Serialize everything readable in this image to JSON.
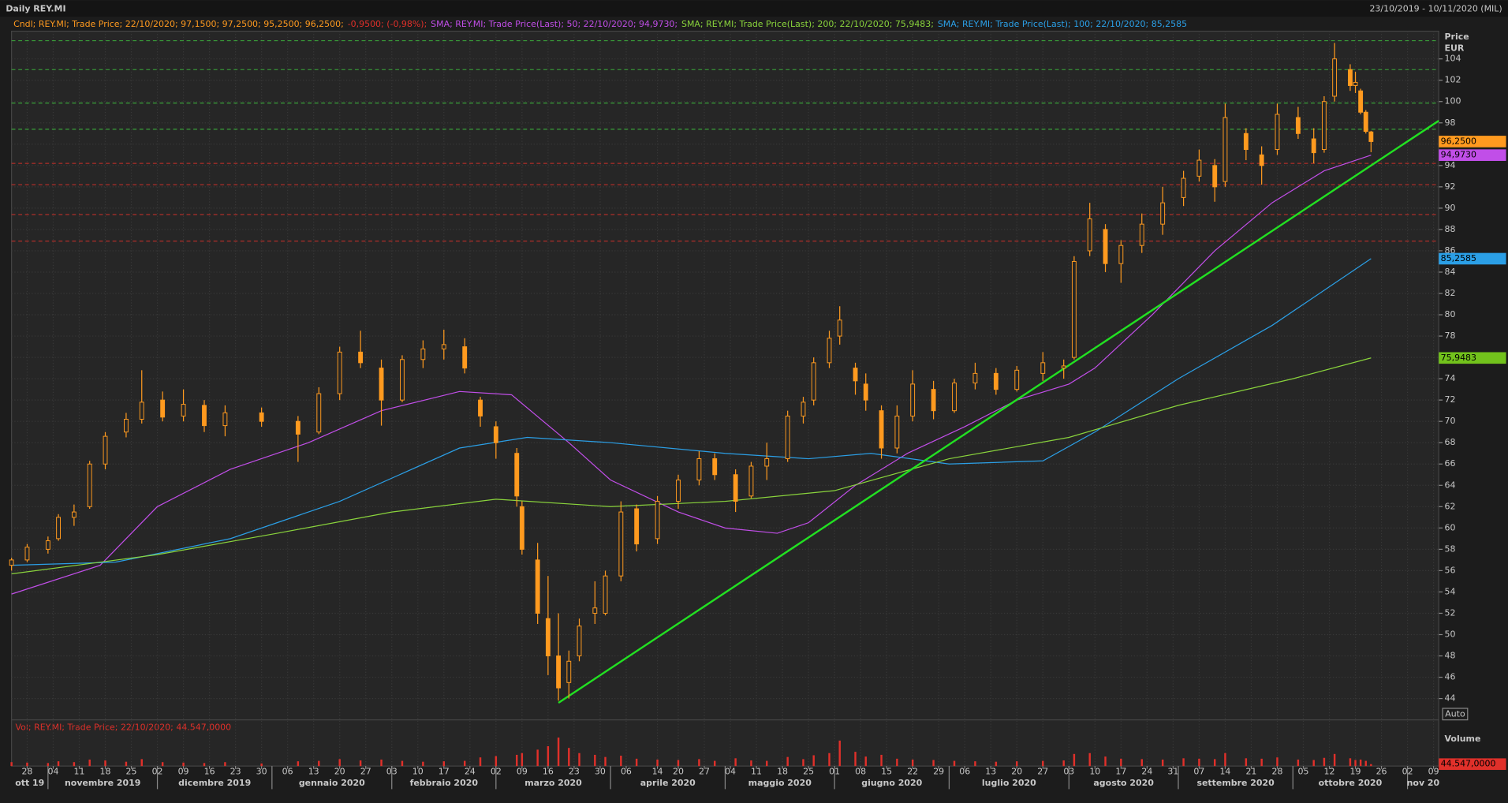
{
  "chart_data": {
    "type": "candlestick",
    "title": "Daily REY.MI",
    "date_range": "23/10/2019 - 10/11/2020 (MIL)",
    "legend": [
      {
        "text": "Cndl; REY.MI; Trade Price;  22/10/2020; 97,1500; 97,2500; 95,2500; 96,2500;",
        "color": "#ff9a1f"
      },
      {
        "text": "-0,9500; (-0,98%);",
        "color": "#e0302a"
      },
      {
        "text": "SMA; REY.MI; Trade Price(Last);  50;  22/10/2020; 94,9730;",
        "color": "#c14ee8"
      },
      {
        "text": "SMA; REY.MI; Trade Price(Last);  200;  22/10/2020; 75,9483;",
        "color": "#8ad43c"
      },
      {
        "text": "SMA; REY.MI; Trade Price(Last);  100;  22/10/2020; 85,2585",
        "color": "#2b9fe6"
      }
    ],
    "y_label": "Price",
    "y_unit": "EUR",
    "auto_label": "Auto",
    "candle_color": "#ff9a1f",
    "x": [
      "2019-10-23",
      "2019-10-28",
      "2019-11-01",
      "2019-11-05",
      "2019-11-08",
      "2019-11-13",
      "2019-11-18",
      "2019-11-22",
      "2019-11-27",
      "2019-12-03",
      "2019-12-09",
      "2019-12-13",
      "2019-12-19",
      "2019-12-30",
      "2020-01-08",
      "2020-01-14",
      "2020-01-20",
      "2020-01-24",
      "2020-01-30",
      "2020-02-05",
      "2020-02-11",
      "2020-02-17",
      "2020-02-21",
      "2020-02-26",
      "2020-03-02",
      "2020-03-06",
      "2020-03-09",
      "2020-03-12",
      "2020-03-16",
      "2020-03-18",
      "2020-03-20",
      "2020-03-24",
      "2020-03-27",
      "2020-03-31",
      "2020-04-03",
      "2020-04-08",
      "2020-04-14",
      "2020-04-20",
      "2020-04-24",
      "2020-04-29",
      "2020-05-05",
      "2020-05-08",
      "2020-05-13",
      "2020-05-19",
      "2020-05-22",
      "2020-05-26",
      "2020-05-29",
      "2020-06-02",
      "2020-06-05",
      "2020-06-09",
      "2020-06-12",
      "2020-06-17",
      "2020-06-22",
      "2020-06-26",
      "2020-07-02",
      "2020-07-08",
      "2020-07-14",
      "2020-07-20",
      "2020-07-27",
      "2020-07-31",
      "2020-08-04",
      "2020-08-07",
      "2020-08-12",
      "2020-08-17",
      "2020-08-21",
      "2020-08-27",
      "2020-09-02",
      "2020-09-07",
      "2020-09-10",
      "2020-09-14",
      "2020-09-18",
      "2020-09-23",
      "2020-09-28",
      "2020-10-02",
      "2020-10-07",
      "2020-10-09",
      "2020-10-13",
      "2020-10-16",
      "2020-10-19",
      "2020-10-20",
      "2020-10-21",
      "2020-10-22"
    ],
    "open": [
      56.5,
      57,
      58,
      59,
      61,
      62,
      66,
      69,
      70.2,
      72,
      70.5,
      71.5,
      69.6,
      70.8,
      70,
      69,
      72.6,
      76.5,
      75,
      72,
      75.8,
      76.8,
      77,
      72,
      69.5,
      67,
      62,
      57,
      51.5,
      48,
      45.5,
      48,
      52,
      52,
      55.5,
      61.8,
      59,
      62.5,
      64.5,
      66.5,
      65,
      63,
      65.8,
      66.5,
      70.5,
      72,
      75.5,
      78,
      75,
      73.5,
      71,
      67.5,
      70.5,
      73,
      71,
      73.6,
      74.5,
      73,
      74.5,
      75,
      76,
      86,
      88,
      84.8,
      86.5,
      88.5,
      91,
      93,
      94,
      92.5,
      97,
      95,
      95.5,
      98.5,
      96.5,
      95.5,
      100.5,
      103,
      101.5,
      101,
      99,
      97.15
    ],
    "high": [
      57.2,
      58.5,
      59.2,
      61.3,
      62.2,
      66.3,
      69,
      70.8,
      74.8,
      72.8,
      73,
      72,
      71.5,
      71.3,
      70.5,
      73.2,
      77,
      78.5,
      75.8,
      76.2,
      77.6,
      78.6,
      77.8,
      72.3,
      70,
      67.5,
      62.5,
      58.6,
      55.5,
      52,
      48.5,
      51.5,
      55,
      56,
      62.5,
      62.2,
      63,
      65,
      67.2,
      67,
      65.5,
      66.2,
      68,
      71,
      72.3,
      76,
      78.5,
      80.8,
      75.5,
      74.5,
      71.5,
      71.5,
      74.8,
      73.8,
      74,
      75.5,
      75,
      75.2,
      76.5,
      75.8,
      85.5,
      90.5,
      88.5,
      87,
      89.5,
      92,
      93.5,
      95.5,
      94.6,
      99.8,
      97.5,
      95.8,
      99.8,
      99.5,
      97.5,
      100.5,
      105.5,
      103.5,
      102.8,
      101.2,
      99.2,
      97.25
    ],
    "low": [
      56,
      56.8,
      57.6,
      58.8,
      60.2,
      61.8,
      65.5,
      68.5,
      69.8,
      70,
      70,
      69,
      68.6,
      69.5,
      66.2,
      68.8,
      72,
      75,
      69.6,
      71.8,
      75,
      75.8,
      74.5,
      69.5,
      66.5,
      62,
      57.5,
      51,
      46.2,
      43.8,
      44,
      47.5,
      51,
      51.8,
      55,
      57.8,
      58.5,
      61.8,
      64,
      64.5,
      61.5,
      62.8,
      64.5,
      66.2,
      69.8,
      71.5,
      75,
      77.2,
      72.5,
      71,
      66.5,
      67,
      70,
      70.2,
      70.8,
      73,
      72.5,
      72.8,
      73.8,
      74,
      75.8,
      85.5,
      84,
      83,
      85.8,
      87.5,
      90.2,
      92.5,
      90.6,
      92,
      94.5,
      92.2,
      95,
      96.5,
      94.2,
      95.2,
      100,
      101,
      100.8,
      98.8,
      97,
      95.25
    ],
    "close": [
      57,
      58.2,
      58.8,
      61,
      61.5,
      66,
      68.6,
      70.2,
      71.8,
      70.4,
      71.6,
      69.6,
      70.8,
      70,
      68.8,
      72.6,
      76.5,
      75.5,
      72,
      75.8,
      76.8,
      77.2,
      75,
      70.5,
      68,
      63,
      58,
      52,
      48,
      45,
      47.5,
      50.8,
      52.5,
      55.5,
      61.5,
      58.5,
      62.5,
      64.5,
      66.5,
      65,
      62.5,
      65.8,
      66.5,
      70.5,
      71.8,
      75.5,
      77.8,
      79.5,
      73.8,
      72,
      67.5,
      70.5,
      73.5,
      71,
      73.6,
      74.5,
      73,
      74.8,
      75.5,
      75.2,
      85,
      89,
      84.8,
      86.5,
      88.5,
      90.5,
      92.8,
      94.5,
      92,
      98.5,
      95.5,
      94,
      98.8,
      97,
      95.2,
      100,
      104,
      101.5,
      101.8,
      99,
      97.2,
      96.25
    ],
    "volume": [
      90000,
      80000,
      70000,
      110000,
      90000,
      150000,
      130000,
      100000,
      160000,
      90000,
      80000,
      70000,
      90000,
      60000,
      110000,
      120000,
      160000,
      130000,
      150000,
      120000,
      100000,
      110000,
      120000,
      200000,
      230000,
      260000,
      300000,
      380000,
      460000,
      660000,
      420000,
      300000,
      260000,
      210000,
      240000,
      170000,
      150000,
      140000,
      160000,
      120000,
      180000,
      130000,
      120000,
      210000,
      160000,
      250000,
      300000,
      590000,
      330000,
      220000,
      260000,
      170000,
      150000,
      140000,
      120000,
      110000,
      100000,
      110000,
      120000,
      130000,
      280000,
      300000,
      220000,
      170000,
      160000,
      150000,
      180000,
      170000,
      160000,
      300000,
      180000,
      170000,
      200000,
      150000,
      140000,
      190000,
      280000,
      180000,
      140000,
      150000,
      120000,
      44547
    ],
    "volume_color": "#e0302a",
    "volume_legend": "Vol; REY.MI; Trade Price;  22/10/2020; 44.547,0000",
    "volume_label": "Volume",
    "volume_last": {
      "value": 44547,
      "label": "44.547,0000"
    },
    "vlim": [
      0,
      1070000
    ],
    "series": [
      {
        "name": "SMA 50",
        "color": "#c14ee8",
        "x": [
          "2019-10-23",
          "2019-11-15",
          "2019-12-02",
          "2019-12-20",
          "2020-01-10",
          "2020-01-30",
          "2020-02-20",
          "2020-03-05",
          "2020-03-20",
          "2020-04-01",
          "2020-04-20",
          "2020-05-01",
          "2020-05-15",
          "2020-05-25",
          "2020-06-05",
          "2020-06-19",
          "2020-07-06",
          "2020-07-20",
          "2020-08-03",
          "2020-08-10",
          "2020-08-25",
          "2020-09-10",
          "2020-09-25",
          "2020-10-09",
          "2020-10-22"
        ],
        "values": [
          53.8,
          56.5,
          62,
          65.5,
          68,
          71,
          72.8,
          72.5,
          68,
          64.5,
          61.5,
          60,
          59.5,
          60.5,
          64,
          67,
          69.5,
          72,
          73.5,
          75,
          80,
          86,
          90.5,
          93.5,
          94.973
        ]
      },
      {
        "name": "SMA 100",
        "color": "#2b9fe6",
        "x": [
          "2019-10-23",
          "2019-11-20",
          "2019-12-20",
          "2020-01-20",
          "2020-02-20",
          "2020-03-10",
          "2020-04-01",
          "2020-05-01",
          "2020-05-25",
          "2020-06-10",
          "2020-07-01",
          "2020-07-27",
          "2020-08-10",
          "2020-09-01",
          "2020-09-25",
          "2020-10-22"
        ],
        "values": [
          56.5,
          56.8,
          59,
          62.5,
          67.5,
          68.5,
          68,
          67,
          66.5,
          67,
          66,
          66.3,
          69,
          74,
          79,
          85.2585
        ]
      },
      {
        "name": "SMA 200",
        "color": "#8ad43c",
        "x": [
          "2019-10-23",
          "2019-12-02",
          "2020-01-02",
          "2020-02-03",
          "2020-03-02",
          "2020-04-01",
          "2020-05-01",
          "2020-06-01",
          "2020-07-01",
          "2020-08-03",
          "2020-09-01",
          "2020-10-01",
          "2020-10-22"
        ],
        "values": [
          55.7,
          57.5,
          59.5,
          61.5,
          62.7,
          62,
          62.5,
          63.5,
          66.5,
          68.5,
          71.5,
          74,
          75.9483
        ]
      }
    ],
    "last_labels": [
      {
        "value": 96.25,
        "label": "96,2500",
        "color": "#ff9a1f"
      },
      {
        "value": 94.973,
        "label": "94,9730",
        "color": "#c14ee8"
      },
      {
        "value": 85.2585,
        "label": "85,2585",
        "color": "#2b9fe6"
      },
      {
        "value": 75.9483,
        "label": "75,9483",
        "color": "#72c21c"
      }
    ],
    "h_lines": [
      {
        "color": "#3fbf3f",
        "values": [
          105.7,
          103,
          99.85,
          97.4
        ]
      },
      {
        "color": "#d0302a",
        "values": [
          94.2,
          92.2,
          89.4,
          86.9
        ]
      }
    ],
    "trendline": {
      "color": "#22e022",
      "points": [
        [
          "2020-03-18",
          43.6
        ],
        [
          "2020-11-10",
          98.2
        ]
      ]
    },
    "xlim": [
      "2019-10-23",
      "2020-11-10"
    ],
    "ylim": [
      42,
      106.6
    ],
    "yticks": [
      44,
      46,
      48,
      50,
      52,
      54,
      56,
      58,
      60,
      62,
      64,
      66,
      68,
      70,
      72,
      74,
      76,
      78,
      80,
      82,
      84,
      86,
      88,
      90,
      92,
      94,
      96,
      98,
      100,
      102,
      104
    ],
    "xticks": [
      {
        "value": "2019-10-28",
        "label": "28"
      },
      {
        "value": "2019-11-04",
        "label": "04"
      },
      {
        "value": "2019-11-11",
        "label": "11"
      },
      {
        "value": "2019-11-18",
        "label": "18"
      },
      {
        "value": "2019-11-25",
        "label": "25"
      },
      {
        "value": "2019-12-02",
        "label": "02"
      },
      {
        "value": "2019-12-09",
        "label": "09"
      },
      {
        "value": "2019-12-16",
        "label": "16"
      },
      {
        "value": "2019-12-23",
        "label": "23"
      },
      {
        "value": "2019-12-30",
        "label": "30"
      },
      {
        "value": "2020-01-06",
        "label": "06"
      },
      {
        "value": "2020-01-13",
        "label": "13"
      },
      {
        "value": "2020-01-20",
        "label": "20"
      },
      {
        "value": "2020-01-27",
        "label": "27"
      },
      {
        "value": "2020-02-03",
        "label": "03"
      },
      {
        "value": "2020-02-10",
        "label": "10"
      },
      {
        "value": "2020-02-17",
        "label": "17"
      },
      {
        "value": "2020-02-24",
        "label": "24"
      },
      {
        "value": "2020-03-02",
        "label": "02"
      },
      {
        "value": "2020-03-09",
        "label": "09"
      },
      {
        "value": "2020-03-16",
        "label": "16"
      },
      {
        "value": "2020-03-23",
        "label": "23"
      },
      {
        "value": "2020-03-30",
        "label": "30"
      },
      {
        "value": "2020-04-06",
        "label": "06"
      },
      {
        "value": "2020-04-14",
        "label": "14"
      },
      {
        "value": "2020-04-20",
        "label": "20"
      },
      {
        "value": "2020-04-27",
        "label": "27"
      },
      {
        "value": "2020-05-04",
        "label": "04"
      },
      {
        "value": "2020-05-11",
        "label": "11"
      },
      {
        "value": "2020-05-18",
        "label": "18"
      },
      {
        "value": "2020-05-25",
        "label": "25"
      },
      {
        "value": "2020-06-01",
        "label": "01"
      },
      {
        "value": "2020-06-08",
        "label": "08"
      },
      {
        "value": "2020-06-15",
        "label": "15"
      },
      {
        "value": "2020-06-22",
        "label": "22"
      },
      {
        "value": "2020-06-29",
        "label": "29"
      },
      {
        "value": "2020-07-06",
        "label": "06"
      },
      {
        "value": "2020-07-13",
        "label": "13"
      },
      {
        "value": "2020-07-20",
        "label": "20"
      },
      {
        "value": "2020-07-27",
        "label": "27"
      },
      {
        "value": "2020-08-03",
        "label": "03"
      },
      {
        "value": "2020-08-10",
        "label": "10"
      },
      {
        "value": "2020-08-17",
        "label": "17"
      },
      {
        "value": "2020-08-24",
        "label": "24"
      },
      {
        "value": "2020-08-31",
        "label": "31"
      },
      {
        "value": "2020-09-07",
        "label": "07"
      },
      {
        "value": "2020-09-14",
        "label": "14"
      },
      {
        "value": "2020-09-21",
        "label": "21"
      },
      {
        "value": "2020-09-28",
        "label": "28"
      },
      {
        "value": "2020-10-05",
        "label": "05"
      },
      {
        "value": "2020-10-12",
        "label": "12"
      },
      {
        "value": "2020-10-19",
        "label": "19"
      },
      {
        "value": "2020-10-26",
        "label": "26"
      },
      {
        "value": "2020-11-02",
        "label": "02"
      },
      {
        "value": "2020-11-09",
        "label": "09"
      }
    ],
    "xmonths": [
      {
        "value": "2019-10",
        "label": "ott 19"
      },
      {
        "value": "2019-11",
        "label": "novembre 2019"
      },
      {
        "value": "2019-12",
        "label": "dicembre 2019"
      },
      {
        "value": "2020-01",
        "label": "gennaio 2020"
      },
      {
        "value": "2020-02",
        "label": "febbraio 2020"
      },
      {
        "value": "2020-03",
        "label": "marzo 2020"
      },
      {
        "value": "2020-04",
        "label": "aprile 2020"
      },
      {
        "value": "2020-05",
        "label": "maggio 2020"
      },
      {
        "value": "2020-06",
        "label": "giugno 2020"
      },
      {
        "value": "2020-07",
        "label": "luglio 2020"
      },
      {
        "value": "2020-08",
        "label": "agosto 2020"
      },
      {
        "value": "2020-09",
        "label": "settembre 2020"
      },
      {
        "value": "2020-10",
        "label": "ottobre 2020"
      },
      {
        "value": "2020-11",
        "label": "nov 20"
      }
    ],
    "grid": true
  }
}
